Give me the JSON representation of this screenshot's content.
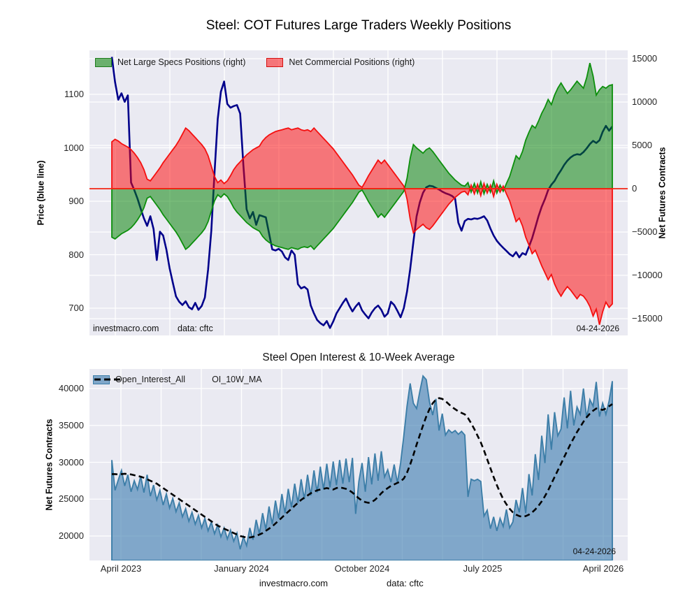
{
  "figure_title": "Steel: COT Futures Large Traders Weekly Positions",
  "colors": {
    "axes_background": "#eaeaf2",
    "grid": "#ffffff",
    "price_line": "#00008b",
    "specs_edge": "#0c8f0c",
    "specs_fill": "#008000",
    "commercial_edge": "#f50f0f",
    "commercial_fill": "#ff0000",
    "zero_line": "#f22613",
    "open_interest_edge": "#3d7ea8",
    "open_interest_fill": "#4682b4",
    "ma_line": "#000000"
  },
  "top_chart": {
    "left_axis_label": "Price (blue line)",
    "right_axis_label": "Net Futures Contracts",
    "left_ticks": [
      "1100",
      "1000",
      "900",
      "800",
      "700"
    ],
    "right_ticks": [
      "15000",
      "10000",
      "5000",
      "0",
      "−5000",
      "−10000",
      "−15000"
    ],
    "legend": [
      {
        "label": "Net Large Specs Positions (right)",
        "swatch": "green-patch"
      },
      {
        "label": "Net Commercial Positions (right)",
        "swatch": "red-patch"
      }
    ],
    "watermark": "investmacro.com",
    "source": "data: cftc",
    "date_label": "04-24-2026"
  },
  "bottom_chart": {
    "title": "Steel Open Interest & 10-Week Average",
    "axis_label": "Net Futures Contracts",
    "y_ticks": [
      "40000",
      "35000",
      "30000",
      "25000",
      "20000"
    ],
    "x_ticks": [
      "April 2023",
      "January 2024",
      "October 2024",
      "July 2025",
      "April 2026"
    ],
    "legend": [
      {
        "label": "Open_Interest_All",
        "swatch": "steelblue-patch"
      },
      {
        "label": "OI_10W_MA",
        "swatch": "black-dash"
      }
    ],
    "watermark": "investmacro.com",
    "source": "data: cftc",
    "date_label": "04-24-2026"
  },
  "chart_data": [
    {
      "type": "line",
      "title": "Steel: COT Futures Large Traders Weekly Positions",
      "x_description": "weekly observations, ~April 2023 to 04-24-2026 (157 weeks)",
      "left_ylabel": "Price (blue line)",
      "right_ylabel": "Net Futures Contracts",
      "left_ylim": [
        650,
        1180
      ],
      "right_ylim": [
        -16500,
        16000
      ],
      "baseline": 0,
      "legend_position": "upper left",
      "grid": true,
      "series": [
        {
          "name": "Price",
          "axis": "left",
          "style": "line",
          "values": [
            1170,
            1123,
            1090,
            1102,
            1086,
            1098,
            935,
            921,
            905,
            886,
            868,
            854,
            872,
            848,
            790,
            843,
            836,
            810,
            775,
            748,
            722,
            712,
            706,
            713,
            702,
            698,
            710,
            697,
            704,
            720,
            772,
            845,
            953,
            1054,
            1105,
            1124,
            1082,
            1075,
            1078,
            1080,
            1064,
            967,
            885,
            868,
            880,
            856,
            874,
            872,
            870,
            840,
            810,
            808,
            811,
            806,
            795,
            790,
            808,
            800,
            745,
            737,
            740,
            735,
            705,
            690,
            678,
            672,
            668,
            676,
            663,
            675,
            690,
            700,
            710,
            718,
            705,
            694,
            703,
            710,
            696,
            688,
            681,
            692,
            700,
            705,
            697,
            684,
            690,
            712,
            706,
            695,
            683,
            700,
            731,
            773,
            824,
            872,
            898,
            916,
            926,
            929,
            928,
            925,
            922,
            918,
            915,
            913,
            910,
            905,
            860,
            845,
            863,
            867,
            866,
            868,
            867,
            869,
            872,
            864,
            849,
            836,
            826,
            819,
            813,
            807,
            801,
            797,
            805,
            795,
            803,
            800,
            815,
            831,
            851,
            872,
            890,
            904,
            921,
            931,
            938,
            949,
            958,
            968,
            976,
            982,
            986,
            988,
            987,
            992,
            999,
            1007,
            1013,
            1009,
            1014,
            1030,
            1041,
            1032,
            1040
          ]
        },
        {
          "name": "Net Large Specs Positions (right)",
          "axis": "right",
          "style": "area",
          "values": [
            -5600,
            -5800,
            -5500,
            -5200,
            -5000,
            -4800,
            -4500,
            -4100,
            -3600,
            -3000,
            -2200,
            -1100,
            -900,
            -1400,
            -1900,
            -2400,
            -3000,
            -3500,
            -4000,
            -4500,
            -5000,
            -5600,
            -6300,
            -7000,
            -6700,
            -6300,
            -5900,
            -5500,
            -5100,
            -4600,
            -3800,
            -2600,
            -1400,
            -700,
            -1000,
            -600,
            -900,
            -1500,
            -2200,
            -2700,
            -3100,
            -3500,
            -3900,
            -4200,
            -4500,
            -4700,
            -4900,
            -5500,
            -5900,
            -6200,
            -6400,
            -6600,
            -6700,
            -6800,
            -6900,
            -7000,
            -6800,
            -6900,
            -7000,
            -6800,
            -6700,
            -6800,
            -6600,
            -7000,
            -6600,
            -6200,
            -5800,
            -5400,
            -5000,
            -4600,
            -4100,
            -3600,
            -3100,
            -2600,
            -2100,
            -1600,
            -1000,
            -400,
            -150,
            -800,
            -1500,
            -2100,
            -2700,
            -3300,
            -2900,
            -3300,
            -2800,
            -2300,
            -1800,
            -1300,
            -800,
            -300,
            1200,
            3500,
            5100,
            4700,
            4400,
            4100,
            4500,
            4700,
            4300,
            3800,
            3300,
            2800,
            2300,
            1800,
            1400,
            1000,
            700,
            400,
            300,
            700,
            -400,
            600,
            -500,
            800,
            -600,
            500,
            -400,
            900,
            -500,
            400,
            -300,
            600,
            1400,
            2600,
            3800,
            3400,
            4300,
            5600,
            6500,
            7300,
            7000,
            7800,
            8700,
            9400,
            10300,
            9700,
            10800,
            11600,
            12200,
            11600,
            11000,
            11400,
            11900,
            12400,
            12000,
            11600,
            12800,
            14500,
            13000,
            10800,
            11400,
            11800,
            11600,
            11900,
            12000
          ]
        },
        {
          "name": "Net Commercial Positions (right)",
          "axis": "right",
          "style": "area",
          "values": [
            5400,
            5700,
            5500,
            5200,
            5000,
            4800,
            4500,
            4100,
            3600,
            3000,
            2200,
            1100,
            900,
            1400,
            1900,
            2400,
            3000,
            3500,
            4000,
            4500,
            5000,
            5600,
            6300,
            7000,
            6700,
            6300,
            5900,
            5500,
            5100,
            4600,
            3800,
            2600,
            1400,
            700,
            1000,
            600,
            900,
            1500,
            2200,
            2700,
            3100,
            3500,
            3900,
            4200,
            4500,
            4700,
            4900,
            5500,
            5900,
            6200,
            6400,
            6600,
            6700,
            6800,
            6900,
            7000,
            6800,
            6900,
            7000,
            6800,
            6700,
            6800,
            6600,
            7000,
            6600,
            6200,
            5800,
            5400,
            5000,
            4600,
            4100,
            3600,
            3100,
            2600,
            2100,
            1600,
            1000,
            400,
            150,
            800,
            1500,
            2100,
            2700,
            3300,
            2900,
            3300,
            2800,
            2300,
            1800,
            1300,
            800,
            300,
            -1200,
            -3500,
            -5100,
            -4700,
            -4400,
            -4100,
            -4500,
            -4700,
            -4300,
            -3800,
            -3300,
            -2800,
            -2300,
            -1800,
            -1400,
            -1000,
            -700,
            -400,
            -300,
            -700,
            400,
            -600,
            500,
            -800,
            600,
            -500,
            400,
            -900,
            500,
            -400,
            300,
            -600,
            -1400,
            -2600,
            -3800,
            -3400,
            -4300,
            -5600,
            -6500,
            -7500,
            -7100,
            -8000,
            -8900,
            -9700,
            -10500,
            -9900,
            -11000,
            -11800,
            -12400,
            -11800,
            -11300,
            -11700,
            -12200,
            -12700,
            -12200,
            -12400,
            -12900,
            -13600,
            -14700,
            -13900,
            -15700,
            -14200,
            -13100,
            -13700,
            -13300
          ]
        }
      ],
      "annotations": [
        "investmacro.com",
        "data: cftc",
        "04-24-2026"
      ]
    },
    {
      "type": "area",
      "title": "Steel Open Interest & 10-Week Average",
      "ylabel": "Net Futures Contracts",
      "ylim": [
        16700,
        42700
      ],
      "x_tick_labels": [
        "April 2023",
        "January 2024",
        "October 2024",
        "July 2025",
        "April 2026"
      ],
      "legend_position": "upper left",
      "grid": true,
      "series": [
        {
          "name": "Open_Interest_All",
          "style": "area",
          "values": [
            30300,
            26200,
            27600,
            28900,
            26800,
            28300,
            26000,
            27500,
            26300,
            28100,
            25900,
            28300,
            25400,
            26900,
            24900,
            26200,
            24200,
            25700,
            23800,
            25100,
            23300,
            24500,
            22600,
            23700,
            22000,
            23200,
            21600,
            22800,
            21100,
            22400,
            20700,
            21900,
            20300,
            21500,
            19900,
            21100,
            19600,
            20800,
            19300,
            20400,
            18200,
            19900,
            18700,
            21100,
            19500,
            22200,
            20300,
            23100,
            20900,
            24000,
            21600,
            24800,
            22400,
            25700,
            23100,
            26400,
            23900,
            27100,
            24500,
            27700,
            25000,
            28300,
            25500,
            28900,
            25900,
            29400,
            26300,
            29800,
            26600,
            30100,
            26900,
            30300,
            27100,
            30500,
            27300,
            30600,
            23000,
            27400,
            29900,
            26000,
            30700,
            27000,
            31200,
            27500,
            31500,
            28000,
            29000,
            27300,
            29700,
            27200,
            29900,
            33600,
            37600,
            40700,
            38000,
            37300,
            39600,
            41700,
            41200,
            38200,
            36400,
            38600,
            34300,
            36600,
            33700,
            34400,
            34000,
            34300,
            33800,
            34200,
            33700,
            25300,
            27700,
            27500,
            27700,
            27400,
            22700,
            23500,
            21000,
            22600,
            20700,
            22400,
            21300,
            23600,
            21100,
            21900,
            24900,
            23200,
            26500,
            23100,
            28400,
            25500,
            31100,
            27600,
            33600,
            29900,
            36500,
            31700,
            36800,
            33600,
            34500,
            38800,
            34600,
            39700,
            35000,
            37500,
            36500,
            40000,
            36000,
            38500,
            37600,
            40900,
            36200,
            38000,
            36500,
            38300,
            41000
          ]
        },
        {
          "name": "OI_10W_MA",
          "style": "dashed-line",
          "values": [
            28400,
            28400,
            28350,
            28400,
            28450,
            28400,
            28350,
            28250,
            28150,
            28050,
            27900,
            27700,
            27500,
            27300,
            27100,
            26800,
            26500,
            26200,
            25900,
            25600,
            25300,
            25000,
            24700,
            24400,
            24100,
            23800,
            23500,
            23200,
            22900,
            22600,
            22300,
            22000,
            21700,
            21400,
            21200,
            21000,
            20800,
            20600,
            20400,
            20200,
            20000,
            19900,
            19800,
            19800,
            19900,
            20000,
            20200,
            20400,
            20700,
            21000,
            21300,
            21700,
            22100,
            22500,
            22900,
            23300,
            23700,
            24100,
            24500,
            24900,
            25200,
            25500,
            25800,
            26000,
            26200,
            26300,
            26400,
            26500,
            26400,
            26300,
            26500,
            26600,
            26500,
            26400,
            26200,
            25900,
            25500,
            25100,
            24800,
            24600,
            24500,
            24600,
            24900,
            25300,
            25800,
            26200,
            26500,
            26800,
            27000,
            27200,
            27400,
            27800,
            28600,
            29700,
            31000,
            32400,
            33700,
            35000,
            36200,
            37200,
            38000,
            38500,
            38700,
            38600,
            38300,
            37900,
            37500,
            37200,
            36900,
            36700,
            36500,
            36000,
            35300,
            34500,
            33600,
            32700,
            31600,
            30400,
            29200,
            28000,
            26900,
            25900,
            25000,
            24300,
            23700,
            23200,
            22900,
            22700,
            22600,
            22700,
            22900,
            23200,
            23600,
            24100,
            24700,
            25400,
            26200,
            27100,
            28000,
            28900,
            29800,
            30700,
            31600,
            32500,
            33300,
            34100,
            34800,
            35500,
            36100,
            36600,
            37000,
            37300,
            37200,
            37100,
            37300,
            37600,
            37900
          ]
        }
      ],
      "annotations": [
        "04-24-2026",
        "investmacro.com",
        "data: cftc"
      ]
    }
  ]
}
